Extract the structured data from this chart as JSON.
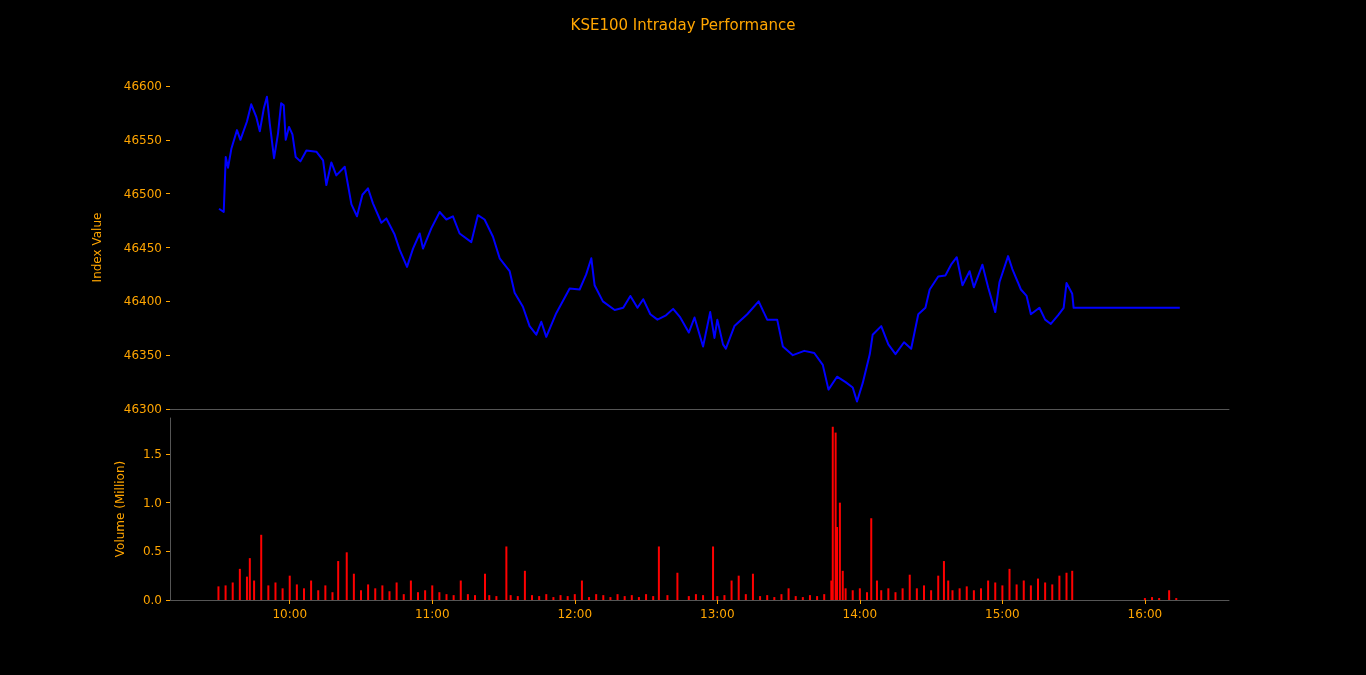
{
  "chart_data": [
    {
      "type": "line",
      "title": "KSE100 Intraday Performance",
      "ylabel": "Index Value",
      "xlim": [
        9.16,
        16.59
      ],
      "ylim": [
        46300,
        46600
      ],
      "yticks": [
        46300,
        46350,
        46400,
        46450,
        46500,
        46550,
        46600
      ],
      "tick_labels": "y",
      "series": [
        {
          "color": "#0000ff",
          "x": [
            9.504,
            9.537,
            9.551,
            9.567,
            9.591,
            9.63,
            9.654,
            9.7,
            9.73,
            9.766,
            9.79,
            9.818,
            9.84,
            9.86,
            9.89,
            9.918,
            9.94,
            9.958,
            9.972,
            9.995,
            10.019,
            10.042,
            10.075,
            10.117,
            10.187,
            10.234,
            10.257,
            10.292,
            10.327,
            10.386,
            10.433,
            10.472,
            10.51,
            10.549,
            10.584,
            10.643,
            10.678,
            10.736,
            10.771,
            10.823,
            10.865,
            10.912,
            10.935,
            10.994,
            11.052,
            11.099,
            11.145,
            11.192,
            11.274,
            11.32,
            11.367,
            11.426,
            11.473,
            11.543,
            11.578,
            11.636,
            11.683,
            11.73,
            11.765,
            11.8,
            11.87,
            11.964,
            12.034,
            12.08,
            12.116,
            12.139,
            12.197,
            12.28,
            12.34,
            12.39,
            12.44,
            12.48,
            12.53,
            12.58,
            12.64,
            12.69,
            12.74,
            12.8,
            12.84,
            12.9,
            12.95,
            12.98,
            13.0,
            13.04,
            13.06,
            13.12,
            13.21,
            13.29,
            13.35,
            13.42,
            13.46,
            13.53,
            13.61,
            13.68,
            13.74,
            13.78,
            13.84,
            13.9,
            13.95,
            13.98,
            14.02,
            14.07,
            14.09,
            14.15,
            14.2,
            14.25,
            14.31,
            14.36,
            14.41,
            14.46,
            14.49,
            14.55,
            14.6,
            14.64,
            14.68,
            14.72,
            14.77,
            14.8,
            14.86,
            14.9,
            14.95,
            14.98,
            15.04,
            15.07,
            15.13,
            15.17,
            15.2,
            15.26,
            15.3,
            15.34,
            15.39,
            15.43,
            15.45,
            15.49,
            15.5,
            16.245
          ],
          "values": [
            46486,
            46483,
            46534,
            46524,
            46542,
            46559,
            46550,
            46567,
            46583,
            46571,
            46558,
            46579,
            46590,
            46565,
            46533,
            46556,
            46584,
            46582,
            46550,
            46562,
            46555,
            46534,
            46530,
            46540,
            46539,
            46531,
            46508,
            46529,
            46517,
            46525,
            46490,
            46479,
            46499,
            46505,
            46491,
            46473,
            46477,
            46462,
            46448,
            46432,
            46449,
            46463,
            46449,
            46468,
            46483,
            46476,
            46479,
            46463,
            46455,
            46480,
            46476,
            46460,
            46440,
            46428,
            46408,
            46395,
            46377,
            46369,
            46381,
            46367,
            46389,
            46412,
            46411,
            46425,
            46440,
            46415,
            46400,
            46392,
            46394,
            46405,
            46394,
            46402,
            46388,
            46383,
            46387,
            46393,
            46385,
            46371,
            46385,
            46358,
            46390,
            46366,
            46383,
            46360,
            46356,
            46377,
            46388,
            46400,
            46383,
            46383,
            46358,
            46350,
            46354,
            46352,
            46341,
            46318,
            46330,
            46325,
            46320,
            46307,
            46324,
            46351,
            46369,
            46377,
            46360,
            46351,
            46362,
            46356,
            46388,
            46394,
            46411,
            46423,
            46424,
            46434,
            46441,
            46415,
            46428,
            46413,
            46434,
            46413,
            46390,
            46418,
            46442,
            46430,
            46411,
            46405,
            46388,
            46394,
            46383,
            46379,
            46387,
            46394,
            46417,
            46407,
            46394,
            46394
          ]
        }
      ]
    },
    {
      "type": "bar",
      "ylabel": "Volume (Million)",
      "xlim": [
        9.16,
        16.59
      ],
      "ylim": [
        0,
        1.87
      ],
      "xticks": [
        {
          "value": 10,
          "label": "10:00"
        },
        {
          "value": 11,
          "label": "11:00"
        },
        {
          "value": 12,
          "label": "12:00"
        },
        {
          "value": 13,
          "label": "13:00"
        },
        {
          "value": 14,
          "label": "14:00"
        },
        {
          "value": 15,
          "label": "15:00"
        },
        {
          "value": 16,
          "label": "16:00"
        }
      ],
      "yticks": [
        {
          "value": 0,
          "label": "0.0"
        },
        {
          "value": 0.5,
          "label": "0.5"
        },
        {
          "value": 1,
          "label": "1.0"
        },
        {
          "value": 1.5,
          "label": "1.5"
        }
      ],
      "series": [
        {
          "color": "#ff0000",
          "x": [
            9.5,
            9.55,
            9.6,
            9.65,
            9.7,
            9.72,
            9.75,
            9.8,
            9.85,
            9.9,
            9.95,
            10.0,
            10.05,
            10.1,
            10.15,
            10.2,
            10.25,
            10.3,
            10.34,
            10.4,
            10.45,
            10.5,
            10.55,
            10.6,
            10.65,
            10.7,
            10.75,
            10.8,
            10.85,
            10.9,
            10.95,
            11.0,
            11.05,
            11.1,
            11.15,
            11.2,
            11.25,
            11.3,
            11.37,
            11.4,
            11.45,
            11.52,
            11.55,
            11.6,
            11.65,
            11.7,
            11.75,
            11.8,
            11.85,
            11.9,
            11.95,
            12.0,
            12.05,
            12.1,
            12.15,
            12.2,
            12.25,
            12.3,
            12.35,
            12.4,
            12.45,
            12.5,
            12.55,
            12.59,
            12.65,
            12.72,
            12.8,
            12.85,
            12.9,
            12.97,
            13.0,
            13.05,
            13.1,
            13.15,
            13.2,
            13.25,
            13.3,
            13.35,
            13.4,
            13.45,
            13.5,
            13.55,
            13.6,
            13.65,
            13.7,
            13.75,
            13.8,
            13.81,
            13.83,
            13.84,
            13.86,
            13.88,
            13.9,
            13.95,
            14.0,
            14.05,
            14.08,
            14.12,
            14.15,
            14.2,
            14.25,
            14.3,
            14.35,
            14.4,
            14.45,
            14.5,
            14.55,
            14.59,
            14.62,
            14.65,
            14.7,
            14.75,
            14.8,
            14.85,
            14.9,
            14.95,
            15.0,
            15.05,
            15.1,
            15.15,
            15.2,
            15.25,
            15.3,
            15.35,
            15.4,
            15.45,
            15.49,
            16.0,
            16.05,
            16.1,
            16.17,
            16.22
          ],
          "values": [
            0.14,
            0.15,
            0.18,
            0.32,
            0.24,
            0.43,
            0.2,
            0.67,
            0.15,
            0.18,
            0.12,
            0.25,
            0.16,
            0.12,
            0.2,
            0.1,
            0.15,
            0.08,
            0.4,
            0.49,
            0.27,
            0.1,
            0.16,
            0.12,
            0.15,
            0.09,
            0.18,
            0.06,
            0.2,
            0.08,
            0.1,
            0.15,
            0.08,
            0.06,
            0.05,
            0.2,
            0.06,
            0.05,
            0.27,
            0.05,
            0.04,
            0.55,
            0.05,
            0.04,
            0.3,
            0.05,
            0.04,
            0.06,
            0.03,
            0.05,
            0.04,
            0.06,
            0.2,
            0.03,
            0.06,
            0.05,
            0.03,
            0.06,
            0.04,
            0.05,
            0.03,
            0.06,
            0.04,
            0.55,
            0.05,
            0.28,
            0.04,
            0.06,
            0.05,
            0.55,
            0.04,
            0.05,
            0.2,
            0.25,
            0.06,
            0.27,
            0.04,
            0.05,
            0.03,
            0.06,
            0.12,
            0.04,
            0.03,
            0.05,
            0.04,
            0.06,
            0.2,
            1.78,
            1.72,
            0.75,
            1.0,
            0.3,
            0.12,
            0.1,
            0.12,
            0.08,
            0.84,
            0.2,
            0.1,
            0.12,
            0.08,
            0.12,
            0.26,
            0.12,
            0.15,
            0.1,
            0.25,
            0.4,
            0.2,
            0.1,
            0.12,
            0.14,
            0.1,
            0.12,
            0.2,
            0.18,
            0.15,
            0.32,
            0.16,
            0.2,
            0.15,
            0.22,
            0.18,
            0.16,
            0.25,
            0.28,
            0.3,
            0.02,
            0.03,
            0.02,
            0.1,
            0.02
          ]
        }
      ]
    }
  ]
}
